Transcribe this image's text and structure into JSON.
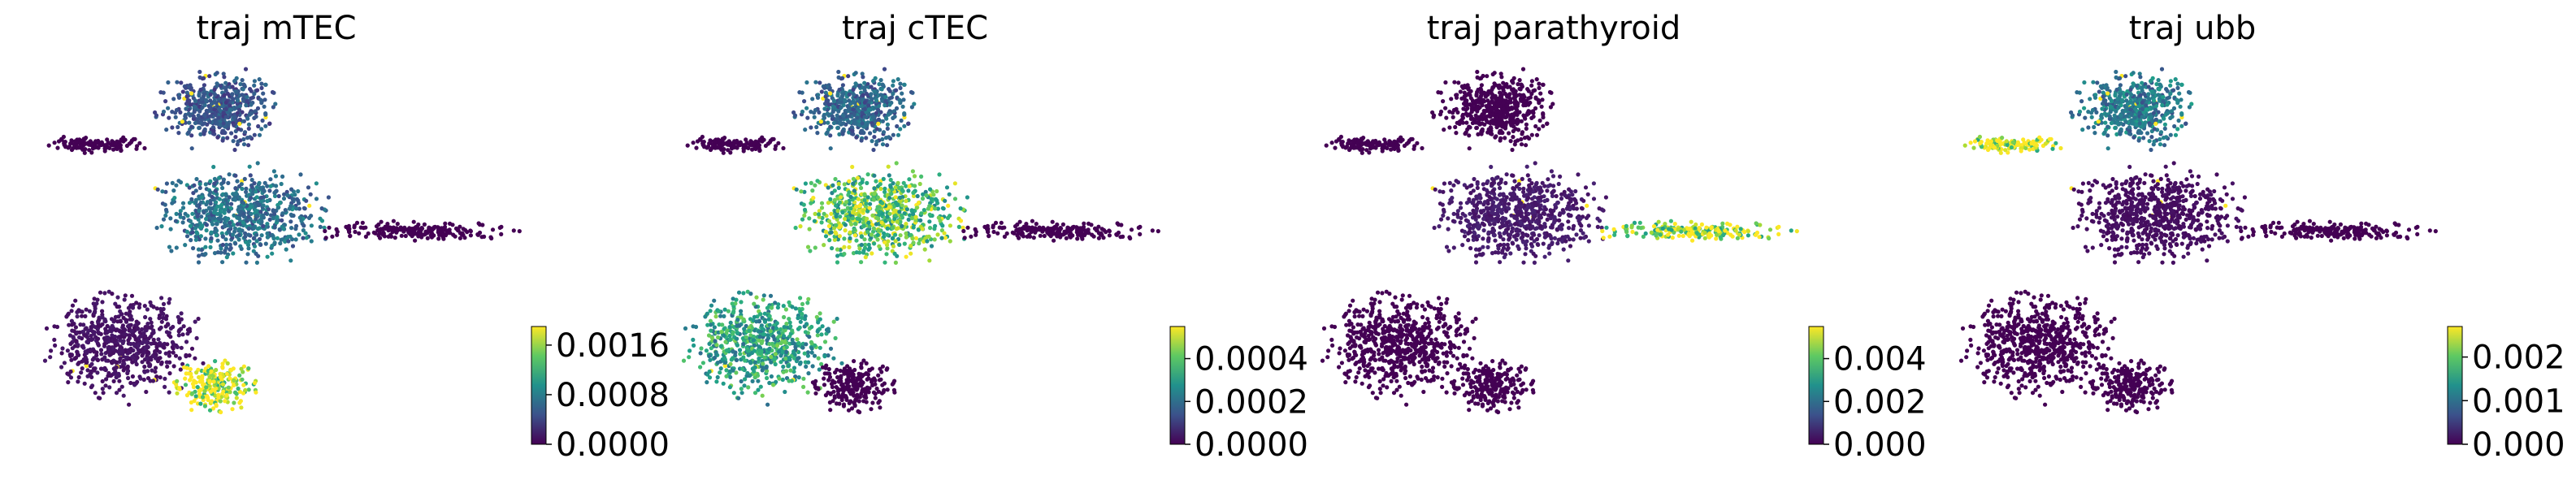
{
  "chart_data": [
    {
      "type": "scatter",
      "title": "traj mTEC",
      "xlabel": "",
      "ylabel": "",
      "grid": false,
      "colormap": "viridis",
      "colorbar": {
        "range": [
          0,
          0.0019
        ],
        "ticks": [
          0.0,
          0.0008,
          0.0016
        ],
        "tick_labels": [
          "0.0000",
          "0.0008",
          "0.0016"
        ]
      },
      "values_by_region": {
        "left_arm": 0.0,
        "upper_lobe": 0.0005,
        "center_lobe": 0.0007,
        "right_tail": 0.0,
        "lower_left": 0.0001,
        "lower_right_blob": 0.0019
      }
    },
    {
      "type": "scatter",
      "title": "traj cTEC",
      "xlabel": "",
      "ylabel": "",
      "grid": false,
      "colormap": "viridis",
      "colorbar": {
        "range": [
          0,
          0.00055
        ],
        "ticks": [
          0.0,
          0.0002,
          0.0004
        ],
        "tick_labels": [
          "0.0000",
          "0.0002",
          "0.0004"
        ]
      },
      "values_by_region": {
        "left_arm": 0.0,
        "upper_lobe": 0.00018,
        "center_lobe": 0.0004,
        "right_tail": 0.0,
        "lower_left": 0.00032,
        "lower_right_blob": 0.0
      }
    },
    {
      "type": "scatter",
      "title": "traj parathyroid",
      "xlabel": "",
      "ylabel": "",
      "grid": false,
      "colormap": "viridis",
      "colorbar": {
        "range": [
          0,
          0.0055
        ],
        "ticks": [
          0.0,
          0.002,
          0.004
        ],
        "tick_labels": [
          "0.000",
          "0.002",
          "0.004"
        ]
      },
      "values_by_region": {
        "left_arm": 0.0,
        "upper_lobe": 0.0,
        "center_lobe": 0.0004,
        "right_tail": 0.005,
        "lower_left": 0.0,
        "lower_right_blob": 0.0
      }
    },
    {
      "type": "scatter",
      "title": "traj ubb",
      "xlabel": "",
      "ylabel": "",
      "grid": false,
      "colormap": "viridis",
      "colorbar": {
        "range": [
          0,
          0.0027
        ],
        "ticks": [
          0.0,
          0.001,
          0.002
        ],
        "tick_labels": [
          "0.000",
          "0.001",
          "0.002"
        ]
      },
      "values_by_region": {
        "left_arm": 0.0027,
        "upper_lobe": 0.0011,
        "center_lobe": 0.0001,
        "right_tail": 0.0,
        "lower_left": 0.0,
        "lower_right_blob": 0.0
      }
    }
  ]
}
